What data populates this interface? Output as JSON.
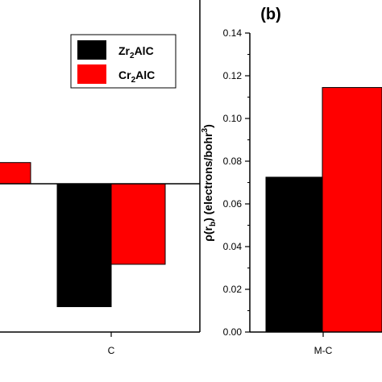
{
  "chart_data": [
    {
      "type": "bar",
      "panel": "",
      "categories": [
        "",
        "C"
      ],
      "series": [
        {
          "name": "Zr2AlC",
          "name_main": "Zr",
          "name_sub": "2",
          "name_tail": "AlC",
          "color": "#000000",
          "values": [
            null,
            -0.29
          ]
        },
        {
          "name": "Cr2AlC",
          "name_main": "Cr",
          "name_sub": "2",
          "name_tail": "AlC",
          "color": "#ff0000",
          "values": [
            0.05,
            -0.19
          ]
        }
      ],
      "ylim": [
        -0.35,
        0.2
      ],
      "legend": "top-right"
    },
    {
      "type": "bar",
      "panel": "(b)",
      "categories": [
        "M-C"
      ],
      "series": [
        {
          "name": "Zr2AlC",
          "color": "#000000",
          "values": [
            0.0725
          ]
        },
        {
          "name": "Cr2AlC",
          "color": "#ff0000",
          "values": [
            0.1145
          ]
        }
      ],
      "ylim": [
        0.0,
        0.14
      ],
      "yticks": [
        "0.00",
        "0.02",
        "0.04",
        "0.06",
        "0.08",
        "0.10",
        "0.12",
        "0.14"
      ],
      "ylabel": {
        "main": "ρ(r",
        "sub": "b",
        "mid": ") (electrons/bohr",
        "sup": "3",
        "tail": ")"
      }
    }
  ]
}
